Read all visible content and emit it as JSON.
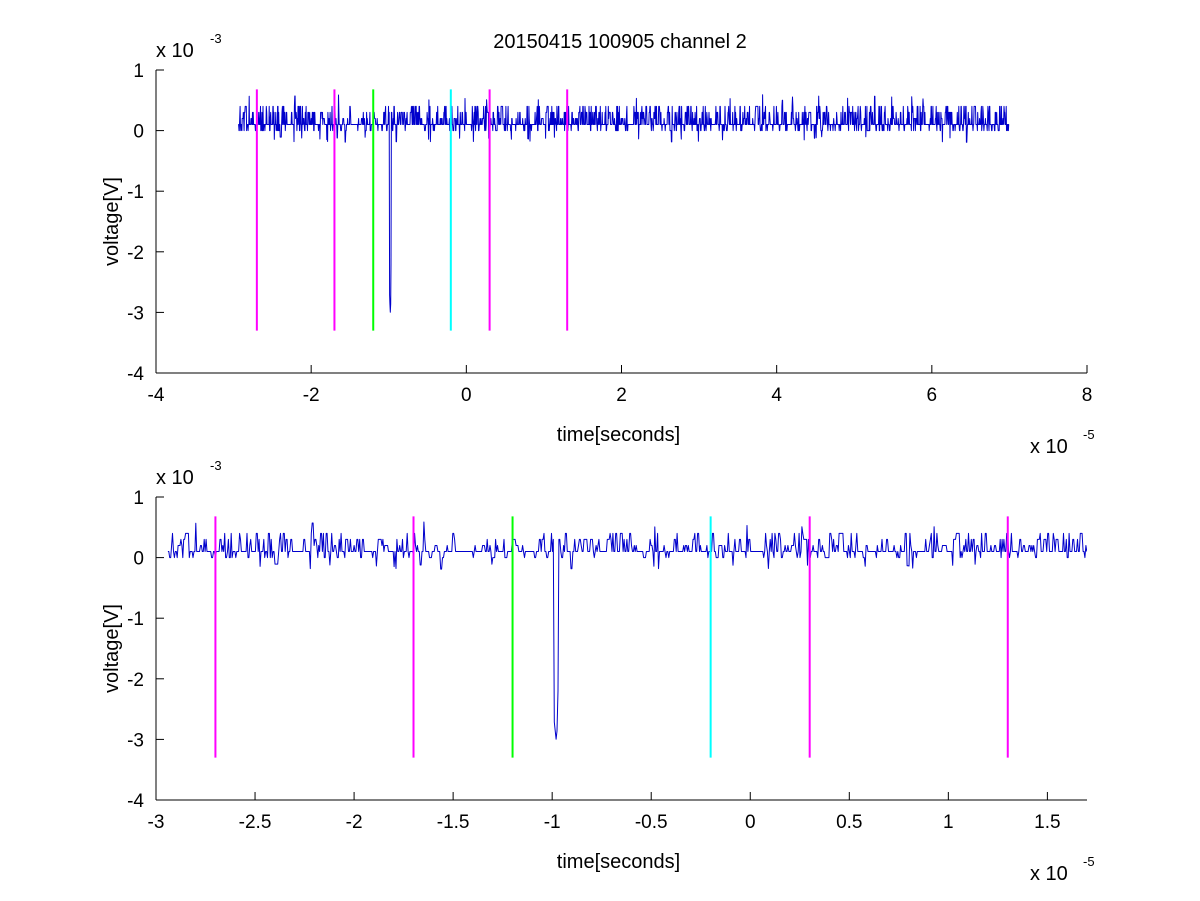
{
  "figure": {
    "title": "20150415 100905 channel 2"
  },
  "chart_data": [
    {
      "type": "line",
      "title": "20150415 100905 channel 2",
      "xlabel": "time[seconds]",
      "ylabel": "voltage[V]",
      "x_exponent_label": "x 10",
      "x_exponent": "-5",
      "y_exponent_label": "x 10",
      "y_exponent": "-3",
      "xlim": [
        -4,
        8
      ],
      "ylim": [
        -4,
        1
      ],
      "xticks": [
        -4,
        -2,
        0,
        2,
        4,
        6,
        8
      ],
      "xtick_labels": [
        "-4",
        "-2",
        "0",
        "2",
        "4",
        "6",
        "8"
      ],
      "yticks": [
        -4,
        -3,
        -2,
        -1,
        0,
        1
      ],
      "ytick_labels": [
        "-4",
        "-3",
        "-2",
        "-1",
        "0",
        "1"
      ],
      "grid": false,
      "signal": {
        "color": "#0000cc",
        "x_start": -2.94,
        "x_end": 7.0,
        "baseline": 0.1,
        "noise": 0.2,
        "spike": {
          "x": -0.98,
          "min": -3.0
        }
      },
      "markers": [
        {
          "x": -2.7,
          "color": "#ff00ff",
          "ymin": -3.3,
          "ymax": 0.68
        },
        {
          "x": -1.7,
          "color": "#ff00ff",
          "ymin": -3.3,
          "ymax": 0.68
        },
        {
          "x": -1.2,
          "color": "#00ff00",
          "ymin": -3.3,
          "ymax": 0.68
        },
        {
          "x": -0.2,
          "color": "#00ffff",
          "ymin": -3.3,
          "ymax": 0.68
        },
        {
          "x": 0.3,
          "color": "#ff00ff",
          "ymin": -3.3,
          "ymax": 0.68
        },
        {
          "x": 1.3,
          "color": "#ff00ff",
          "ymin": -3.3,
          "ymax": 0.68
        }
      ]
    },
    {
      "type": "line",
      "title": "",
      "xlabel": "time[seconds]",
      "ylabel": "voltage[V]",
      "x_exponent_label": "x 10",
      "x_exponent": "-5",
      "y_exponent_label": "x 10",
      "y_exponent": "-3",
      "xlim": [
        -3.0,
        1.7
      ],
      "ylim": [
        -4,
        1
      ],
      "xticks": [
        -3,
        -2.5,
        -2,
        -1.5,
        -1,
        -0.5,
        0,
        0.5,
        1,
        1.5
      ],
      "xtick_labels": [
        "-3",
        "-2.5",
        "-2",
        "-1.5",
        "-1",
        "-0.5",
        "0",
        "0.5",
        "1",
        "1.5"
      ],
      "yticks": [
        -4,
        -3,
        -2,
        -1,
        0,
        1
      ],
      "ytick_labels": [
        "-4",
        "-3",
        "-2",
        "-1",
        "0",
        "1"
      ],
      "grid": false,
      "signal": {
        "color": "#0000cc",
        "x_start": -2.94,
        "x_end": 1.7,
        "baseline": 0.1,
        "noise": 0.2,
        "spike": {
          "x": -0.98,
          "min": -3.0
        }
      },
      "markers": [
        {
          "x": -2.7,
          "color": "#ff00ff",
          "ymin": -3.3,
          "ymax": 0.68
        },
        {
          "x": -1.7,
          "color": "#ff00ff",
          "ymin": -3.3,
          "ymax": 0.68
        },
        {
          "x": -1.2,
          "color": "#00ff00",
          "ymin": -3.3,
          "ymax": 0.68
        },
        {
          "x": -0.2,
          "color": "#00ffff",
          "ymin": -3.3,
          "ymax": 0.68
        },
        {
          "x": 0.3,
          "color": "#ff00ff",
          "ymin": -3.3,
          "ymax": 0.68
        },
        {
          "x": 1.3,
          "color": "#ff00ff",
          "ymin": -3.3,
          "ymax": 0.68
        }
      ]
    }
  ]
}
